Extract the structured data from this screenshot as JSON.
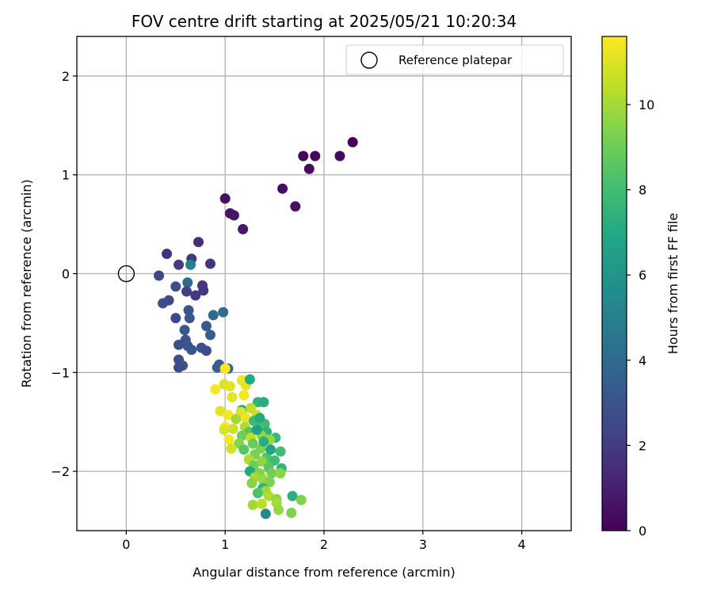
{
  "chart_data": {
    "type": "scatter",
    "title": "FOV centre drift starting at 2025/05/21 10:20:34",
    "xlabel": "Angular distance from reference (arcmin)",
    "ylabel": "Rotation from reference (arcmin)",
    "xlim": [
      -0.5,
      4.5
    ],
    "ylim": [
      -2.6,
      2.4
    ],
    "xticks": [
      0,
      1,
      2,
      3,
      4
    ],
    "yticks": [
      -2,
      -1,
      0,
      1,
      2
    ],
    "xtick_labels": [
      "0",
      "1",
      "2",
      "3",
      "4"
    ],
    "ytick_labels": [
      "−2",
      "−1",
      "0",
      "1",
      "2"
    ],
    "grid": true,
    "legend": {
      "position": "top-right",
      "entries": [
        "Reference platepar"
      ]
    },
    "colorbar": {
      "label": "Hours from first FF file",
      "range": [
        0,
        11.6
      ],
      "ticks": [
        0,
        2,
        4,
        6,
        8,
        10
      ],
      "tick_labels": [
        "0",
        "2",
        "4",
        "6",
        "8",
        "10"
      ],
      "colormap": "viridis"
    },
    "reference_point": {
      "x": 0,
      "y": 0,
      "name": "Reference platepar"
    },
    "points": [
      [
        2.29,
        1.33,
        0.1
      ],
      [
        1.79,
        1.19,
        0.2
      ],
      [
        1.91,
        1.19,
        0.25
      ],
      [
        2.16,
        1.19,
        0.3
      ],
      [
        1.85,
        1.06,
        0.35
      ],
      [
        1.58,
        0.86,
        0.4
      ],
      [
        1.71,
        0.68,
        0.45
      ],
      [
        1.0,
        0.76,
        0.5
      ],
      [
        1.05,
        0.61,
        0.6
      ],
      [
        1.09,
        0.59,
        0.65
      ],
      [
        1.18,
        0.45,
        0.75
      ],
      [
        0.73,
        0.32,
        1.5
      ],
      [
        0.41,
        0.2,
        1.6
      ],
      [
        0.66,
        0.15,
        1.8
      ],
      [
        0.85,
        0.1,
        1.7
      ],
      [
        0.53,
        0.09,
        1.9
      ],
      [
        0.33,
        -0.02,
        2.4
      ],
      [
        0.62,
        -0.09,
        4.0
      ],
      [
        0.5,
        -0.13,
        2.8
      ],
      [
        0.77,
        -0.12,
        1.9
      ],
      [
        0.78,
        -0.17,
        1.9
      ],
      [
        0.61,
        -0.18,
        2.2
      ],
      [
        0.7,
        -0.22,
        1.9
      ],
      [
        0.43,
        -0.27,
        2.6
      ],
      [
        0.37,
        -0.3,
        2.7
      ],
      [
        0.63,
        -0.37,
        3.0
      ],
      [
        0.98,
        -0.39,
        4.2
      ],
      [
        0.5,
        -0.45,
        2.5
      ],
      [
        0.64,
        -0.45,
        3.1
      ],
      [
        0.88,
        -0.42,
        4.0
      ],
      [
        0.81,
        -0.53,
        3.3
      ],
      [
        0.59,
        -0.57,
        3.2
      ],
      [
        0.85,
        -0.62,
        3.4
      ],
      [
        0.6,
        -0.67,
        3.0
      ],
      [
        0.53,
        -0.72,
        2.8
      ],
      [
        0.62,
        -0.73,
        2.9
      ],
      [
        0.66,
        -0.77,
        3.1
      ],
      [
        0.76,
        -0.75,
        2.9
      ],
      [
        0.81,
        -0.78,
        2.6
      ],
      [
        0.53,
        -0.87,
        2.8
      ],
      [
        0.57,
        -0.93,
        2.9
      ],
      [
        0.53,
        -0.95,
        2.6
      ],
      [
        0.94,
        -0.92,
        3.4
      ],
      [
        0.92,
        -0.95,
        3.5
      ],
      [
        1.03,
        -0.96,
        4.0
      ],
      [
        1.0,
        -0.96,
        11.6
      ],
      [
        0.65,
        0.09,
        5.0
      ],
      [
        0.99,
        -1.12,
        11.0
      ],
      [
        1.05,
        -1.14,
        11.1
      ],
      [
        1.17,
        -1.08,
        11.3
      ],
      [
        1.21,
        -1.13,
        11.2
      ],
      [
        0.9,
        -1.17,
        11.5
      ],
      [
        1.25,
        -1.07,
        7.0
      ],
      [
        1.07,
        -1.25,
        11.2
      ],
      [
        1.19,
        -1.23,
        11.4
      ],
      [
        1.17,
        -1.38,
        6.8
      ],
      [
        1.33,
        -1.3,
        7.5
      ],
      [
        1.39,
        -1.3,
        7.2
      ],
      [
        1.26,
        -1.36,
        10.5
      ],
      [
        0.95,
        -1.39,
        11.1
      ],
      [
        1.03,
        -1.43,
        11.4
      ],
      [
        1.16,
        -1.4,
        11.0
      ],
      [
        1.11,
        -1.47,
        10.0
      ],
      [
        1.21,
        -1.46,
        11.3
      ],
      [
        1.32,
        -1.43,
        10.6
      ],
      [
        1.34,
        -1.5,
        7.8
      ],
      [
        1.4,
        -1.52,
        8.0
      ],
      [
        1.0,
        -1.55,
        11.6
      ],
      [
        1.08,
        -1.57,
        10.7
      ],
      [
        1.2,
        -1.55,
        10.2
      ],
      [
        1.24,
        -1.6,
        8.5
      ],
      [
        1.35,
        -1.58,
        8.3
      ],
      [
        1.42,
        -1.6,
        7.4
      ],
      [
        0.99,
        -1.58,
        11.0
      ],
      [
        1.17,
        -1.64,
        9.0
      ],
      [
        1.26,
        -1.66,
        10.5
      ],
      [
        1.37,
        -1.64,
        9.6
      ],
      [
        1.51,
        -1.66,
        7.7
      ],
      [
        1.04,
        -1.68,
        11.4
      ],
      [
        1.14,
        -1.72,
        9.5
      ],
      [
        1.28,
        -1.72,
        8.9
      ],
      [
        1.45,
        -1.68,
        9.8
      ],
      [
        1.06,
        -1.77,
        10.8
      ],
      [
        1.19,
        -1.78,
        8.6
      ],
      [
        1.36,
        -1.77,
        9.3
      ],
      [
        1.56,
        -1.8,
        8.0
      ],
      [
        1.3,
        -1.83,
        9.2
      ],
      [
        1.42,
        -1.86,
        8.4
      ],
      [
        1.24,
        -1.88,
        10.2
      ],
      [
        1.37,
        -1.9,
        9.7
      ],
      [
        1.5,
        -1.89,
        7.9
      ],
      [
        1.29,
        -1.94,
        9.0
      ],
      [
        1.44,
        -1.96,
        8.6
      ],
      [
        1.57,
        -1.97,
        7.6
      ],
      [
        1.25,
        -2.0,
        7.0
      ],
      [
        1.35,
        -2.02,
        9.4
      ],
      [
        1.47,
        -2.02,
        9.1
      ],
      [
        1.56,
        -2.02,
        9.6
      ],
      [
        1.3,
        -2.06,
        10.0
      ],
      [
        1.38,
        -2.08,
        9.8
      ],
      [
        1.27,
        -2.12,
        9.5
      ],
      [
        1.45,
        -2.11,
        9.3
      ],
      [
        1.38,
        -2.17,
        7.5
      ],
      [
        1.41,
        -2.2,
        9.9
      ],
      [
        1.33,
        -2.22,
        8.3
      ],
      [
        1.44,
        -2.25,
        10.2
      ],
      [
        1.52,
        -2.28,
        9.7
      ],
      [
        1.68,
        -2.25,
        7.3
      ],
      [
        1.77,
        -2.29,
        9.4
      ],
      [
        1.28,
        -2.34,
        9.9
      ],
      [
        1.37,
        -2.33,
        10.4
      ],
      [
        1.52,
        -2.32,
        10.0
      ],
      [
        1.54,
        -2.39,
        9.8
      ],
      [
        1.67,
        -2.42,
        9.4
      ],
      [
        1.41,
        -2.43,
        5.4
      ],
      [
        1.32,
        -1.58,
        6.5
      ],
      [
        1.39,
        -1.7,
        7.3
      ],
      [
        1.46,
        -1.78,
        6.9
      ],
      [
        1.29,
        -1.49,
        7.8
      ],
      [
        1.35,
        -1.46,
        7.0
      ]
    ]
  }
}
